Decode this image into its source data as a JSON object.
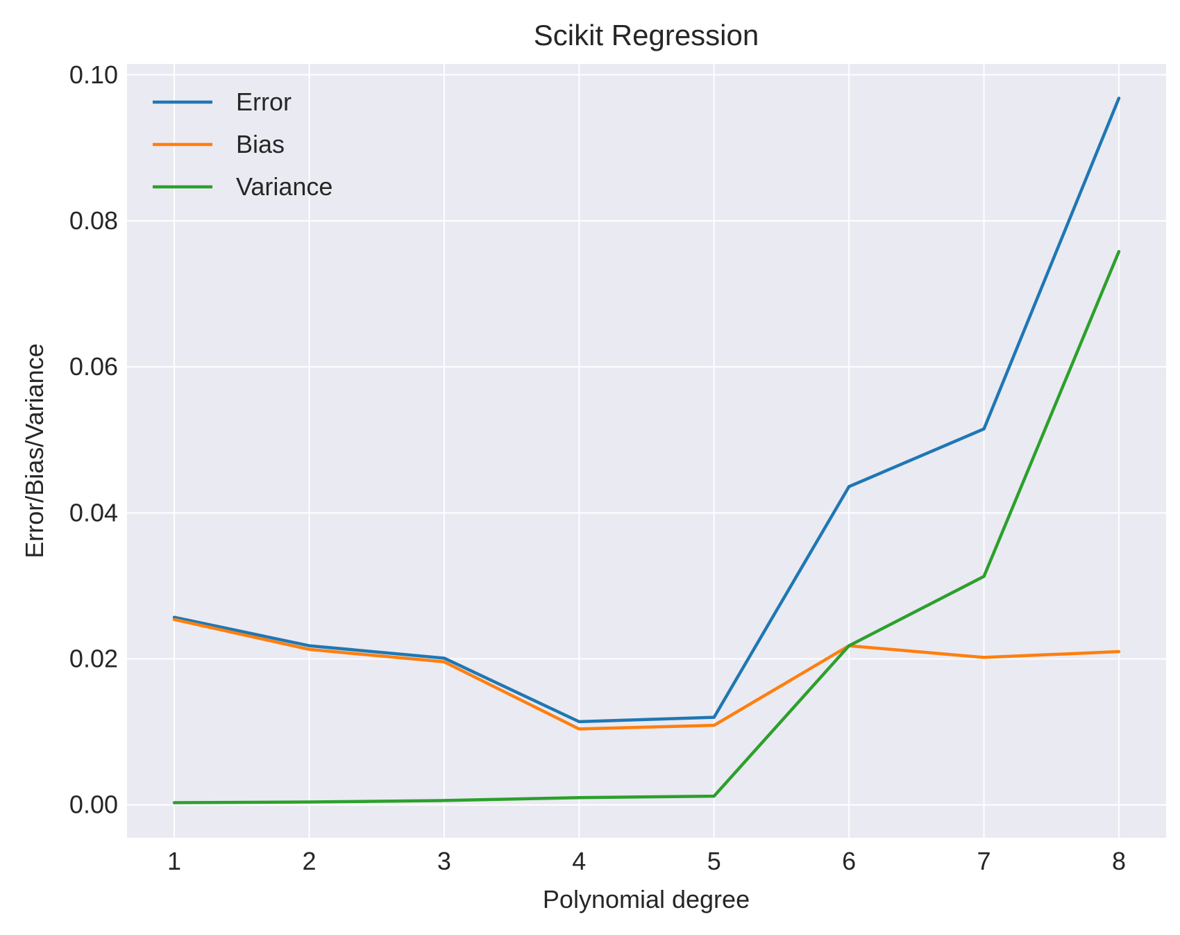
{
  "chart_data": {
    "type": "line",
    "title": "Scikit Regression",
    "xlabel": "Polynomial degree",
    "ylabel": "Error/Bias/Variance",
    "x": [
      1,
      2,
      3,
      4,
      5,
      6,
      7,
      8
    ],
    "xlim": [
      0.65,
      8.35
    ],
    "ylim": [
      -0.0045,
      0.1015
    ],
    "xticks": [
      1,
      2,
      3,
      4,
      5,
      6,
      7,
      8
    ],
    "yticks": [
      0.0,
      0.02,
      0.04,
      0.06,
      0.08,
      0.1
    ],
    "ytick_labels": [
      "0.00",
      "0.02",
      "0.04",
      "0.06",
      "0.08",
      "0.10"
    ],
    "grid": true,
    "legend_position": "top-left",
    "background": "#eaeaf2",
    "series": [
      {
        "name": "Error",
        "color": "#1f77b4",
        "values": [
          0.0257,
          0.0218,
          0.0201,
          0.0114,
          0.012,
          0.0436,
          0.0515,
          0.0968
        ]
      },
      {
        "name": "Bias",
        "color": "#ff7f0e",
        "values": [
          0.0254,
          0.0213,
          0.0196,
          0.0104,
          0.0109,
          0.0218,
          0.0202,
          0.021
        ]
      },
      {
        "name": "Variance",
        "color": "#2ca02c",
        "values": [
          0.0003,
          0.0004,
          0.0006,
          0.001,
          0.0012,
          0.0218,
          0.0313,
          0.0758
        ]
      }
    ]
  }
}
